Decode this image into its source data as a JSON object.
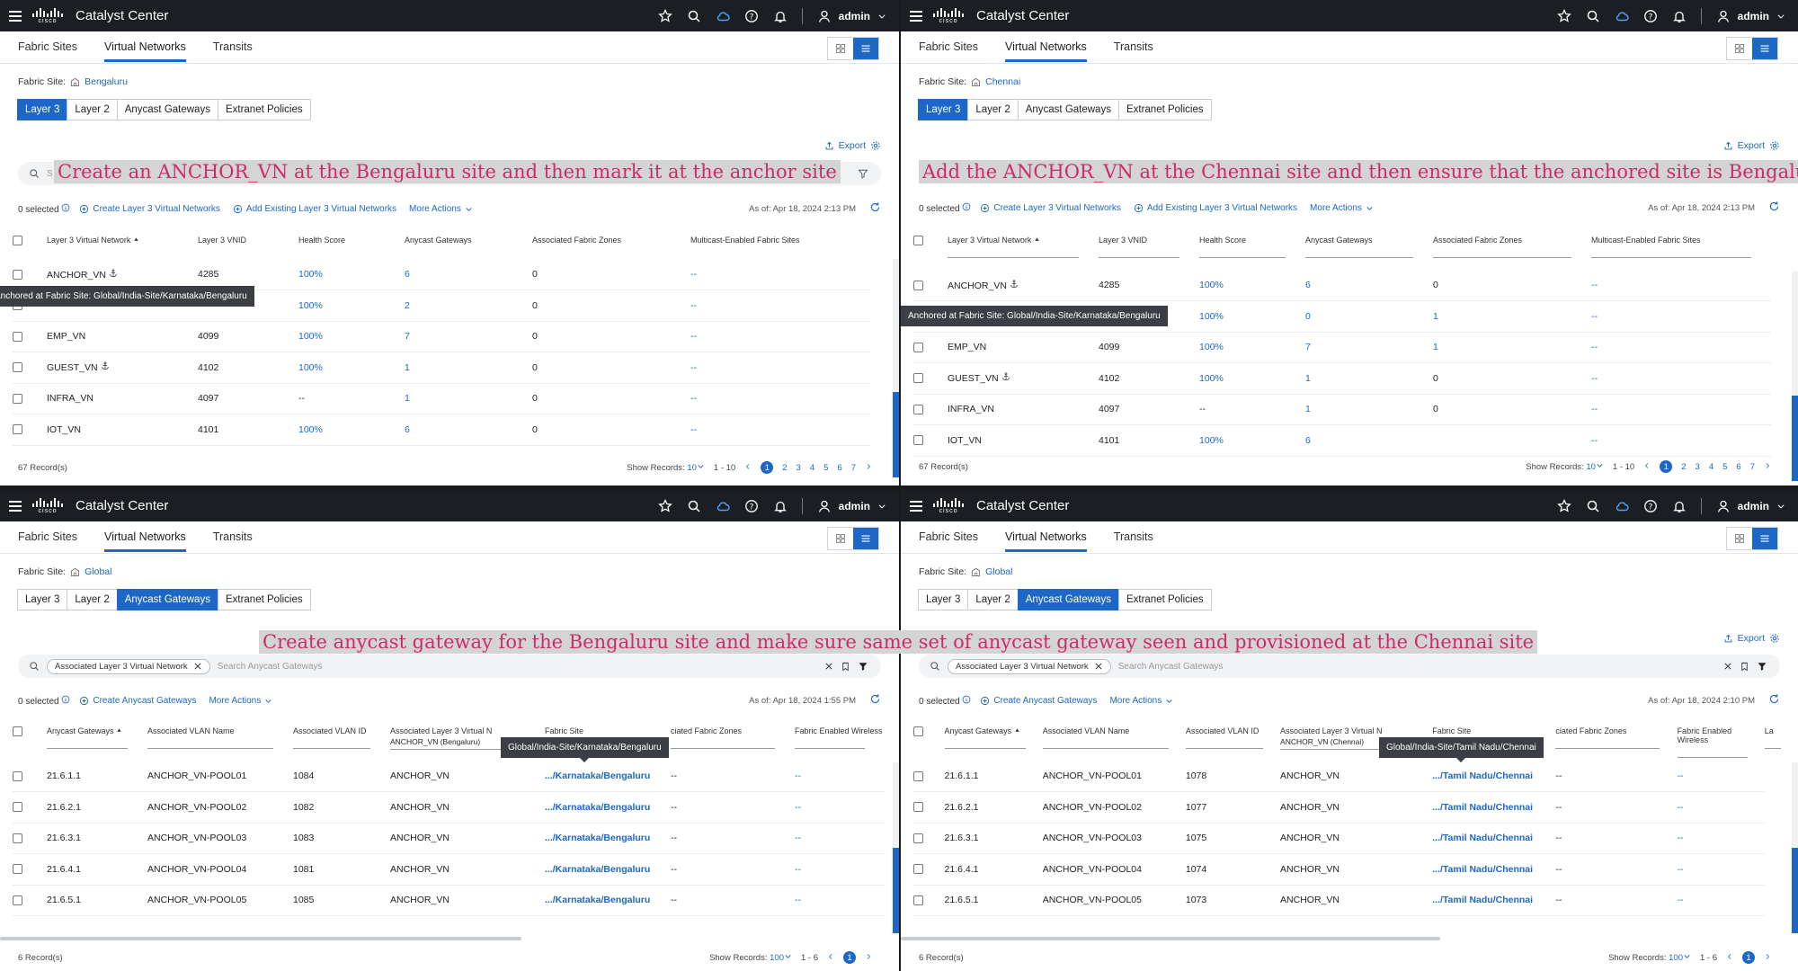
{
  "common": {
    "app_title": "Catalyst Center",
    "logo_text": "cisco",
    "user": "admin",
    "tabs": [
      "Fabric Sites",
      "Virtual Networks",
      "Transits"
    ],
    "fabric_site_label": "Fabric Site:",
    "seg_tabs": [
      "Layer 3",
      "Layer 2",
      "Anycast Gateways",
      "Extranet Policies"
    ],
    "export": "Export",
    "selected": "0 selected",
    "more_actions": "More Actions",
    "show_records": "Show Records:",
    "accent": "#1d67c7",
    "caption_color": "#cb2d6b"
  },
  "panels": [
    {
      "fabric_site": "Bengaluru",
      "caption": "Create an ANCHOR_VN at the Bengaluru site and then mark it at the anchor site",
      "search_placeholder": "S",
      "actions": [
        "Create Layer 3 Virtual Networks",
        "Add Existing Layer 3 Virtual Networks"
      ],
      "as_of": "As of: Apr 18, 2024 2:13 PM",
      "columns": [
        "Layer 3 Virtual Network",
        "Layer 3 VNID",
        "Health Score",
        "Anycast Gateways",
        "Associated Fabric Zones",
        "Multicast-Enabled Fabric Sites"
      ],
      "rows": [
        [
          "ANCHOR_VN",
          "4285",
          "100%",
          "6",
          "0",
          "--"
        ],
        [
          "",
          "",
          "100%",
          "2",
          "0",
          "--"
        ],
        [
          "EMP_VN",
          "4099",
          "100%",
          "7",
          "0",
          "--"
        ],
        [
          "GUEST_VN",
          "4102",
          "100%",
          "1",
          "0",
          "--"
        ],
        [
          "INFRA_VN",
          "4097",
          "--",
          "1",
          "0",
          "--"
        ],
        [
          "IOT_VN",
          "4101",
          "100%",
          "6",
          "0",
          "--"
        ]
      ],
      "tooltip": "Anchored at Fabric Site: Global/India-Site/Karnataka/Bengaluru",
      "records": "67 Record(s)",
      "show_value": "10",
      "range": "1 - 10",
      "pages": [
        "1",
        "2",
        "3",
        "4",
        "5",
        "6",
        "7"
      ]
    },
    {
      "fabric_site": "Chennai",
      "caption": "Add the ANCHOR_VN at the Chennai site and then ensure that the anchored site is Bengaluru",
      "actions": [
        "Create Layer 3 Virtual Networks",
        "Add Existing Layer 3 Virtual Networks"
      ],
      "as_of": "As of: Apr 18, 2024 2:13 PM",
      "columns": [
        "Layer 3 Virtual Network",
        "Layer 3 VNID",
        "Health Score",
        "Anycast Gateways",
        "Associated Fabric Zones",
        "Multicast-Enabled Fabric Sites"
      ],
      "rows": [
        [
          "ANCHOR_VN",
          "4285",
          "100%",
          "6",
          "0",
          "--"
        ],
        [
          "",
          "",
          "100%",
          "0",
          "1",
          "--"
        ],
        [
          "EMP_VN",
          "4099",
          "100%",
          "7",
          "1",
          "--"
        ],
        [
          "GUEST_VN",
          "4102",
          "100%",
          "1",
          "0",
          "--"
        ],
        [
          "INFRA_VN",
          "4097",
          "--",
          "1",
          "0",
          "--"
        ],
        [
          "IOT_VN",
          "4101",
          "100%",
          "6",
          "",
          "--"
        ]
      ],
      "tooltip": "Anchored at Fabric Site: Global/India-Site/Karnataka/Bengaluru",
      "records": "67 Record(s)",
      "show_value": "10",
      "range": "1 - 10",
      "pages": [
        "1",
        "2",
        "3",
        "4",
        "5",
        "6",
        "7"
      ]
    },
    {
      "fabric_site": "Global",
      "caption": "Create anycast gateway for the Bengaluru site and make sure same set of anycast gateway seen and provisioned at the Chennai site",
      "chip": "Associated Layer 3 Virtual Network",
      "search_placeholder": "Search Anycast Gateways",
      "actions": [
        "Create Anycast Gateways"
      ],
      "as_of": "As of: Apr 18, 2024 1:55 PM",
      "columns": [
        "Anycast Gateways",
        "Associated VLAN Name",
        "Associated VLAN ID",
        "Associated Layer 3 Virtual N",
        "Fabric Site",
        "ciated Fabric Zones",
        "Fabric Enabled Wireless"
      ],
      "col_filter": "ANCHOR_VN (Bengaluru)",
      "rows": [
        [
          "21.6.1.1",
          "ANCHOR_VN-POOL01",
          "1084",
          "ANCHOR_VN",
          ".../Karnataka/Bengaluru",
          "--",
          "--"
        ],
        [
          "21.6.2.1",
          "ANCHOR_VN-POOL02",
          "1082",
          "ANCHOR_VN",
          ".../Karnataka/Bengaluru",
          "--",
          "--"
        ],
        [
          "21.6.3.1",
          "ANCHOR_VN-POOL03",
          "1083",
          "ANCHOR_VN",
          ".../Karnataka/Bengaluru",
          "--",
          "--"
        ],
        [
          "21.6.4.1",
          "ANCHOR_VN-POOL04",
          "1081",
          "ANCHOR_VN",
          ".../Karnataka/Bengaluru",
          "--",
          "--"
        ],
        [
          "21.6.5.1",
          "ANCHOR_VN-POOL05",
          "1085",
          "ANCHOR_VN",
          ".../Karnataka/Bengaluru",
          "--",
          "--"
        ]
      ],
      "tooltip": "Global/India-Site/Karnataka/Bengaluru",
      "records": "6 Record(s)",
      "show_value": "100",
      "range": "1 - 6",
      "pages": [
        "1"
      ]
    },
    {
      "fabric_site": "Global",
      "chip": "Associated Layer 3 Virtual Network",
      "search_placeholder": "Search Anycast Gateways",
      "actions": [
        "Create Anycast Gateways"
      ],
      "as_of": "As of: Apr 18, 2024 2:10 PM",
      "columns": [
        "Anycast Gateways",
        "Associated VLAN Name",
        "Associated VLAN ID",
        "Associated Layer 3 Virtual N",
        "Fabric Site",
        "ciated Fabric Zones",
        "Fabric Enabled Wireless",
        "La"
      ],
      "col_filter": "ANCHOR_VN (Chennai)",
      "rows": [
        [
          "21.6.1.1",
          "ANCHOR_VN-POOL01",
          "1078",
          "ANCHOR_VN",
          ".../Tamil Nadu/Chennai",
          "--",
          "--"
        ],
        [
          "21.6.2.1",
          "ANCHOR_VN-POOL02",
          "1077",
          "ANCHOR_VN",
          ".../Tamil Nadu/Chennai",
          "--",
          "--"
        ],
        [
          "21.6.3.1",
          "ANCHOR_VN-POOL03",
          "1075",
          "ANCHOR_VN",
          ".../Tamil Nadu/Chennai",
          "--",
          "--"
        ],
        [
          "21.6.4.1",
          "ANCHOR_VN-POOL04",
          "1074",
          "ANCHOR_VN",
          ".../Tamil Nadu/Chennai",
          "--",
          "--"
        ],
        [
          "21.6.5.1",
          "ANCHOR_VN-POOL05",
          "1073",
          "ANCHOR_VN",
          ".../Tamil Nadu/Chennai",
          "--",
          "--"
        ]
      ],
      "tooltip": "Global/India-Site/Tamil Nadu/Chennai",
      "records": "6 Record(s)",
      "show_value": "100",
      "range": "1 - 6",
      "pages": [
        "1"
      ]
    }
  ]
}
